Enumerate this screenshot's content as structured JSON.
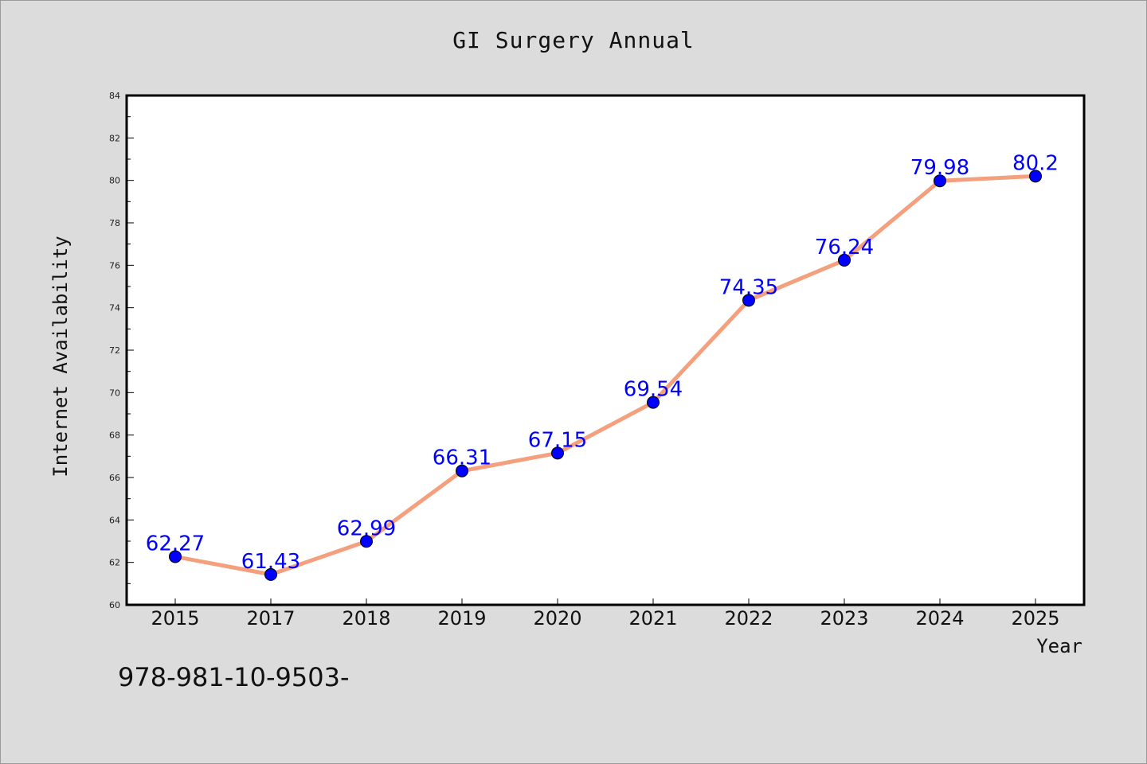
{
  "chart_data": {
    "type": "line",
    "title": "GI Surgery Annual",
    "xlabel": "Year",
    "ylabel": "Internet Availability",
    "categories": [
      "2015",
      "2017",
      "2018",
      "2019",
      "2020",
      "2021",
      "2022",
      "2023",
      "2024",
      "2025"
    ],
    "values": [
      62.27,
      61.43,
      62.99,
      66.31,
      67.15,
      69.54,
      74.35,
      76.24,
      79.98,
      80.2
    ],
    "data_labels": [
      "62.27",
      "61.43",
      "62.99",
      "66.31",
      "67.15",
      "69.54",
      "74.35",
      "76.24",
      "79.98",
      "80.2"
    ],
    "ylim": [
      60,
      84
    ],
    "yticks": [
      "60",
      "62",
      "64",
      "66",
      "68",
      "70",
      "72",
      "74",
      "76",
      "78",
      "80",
      "82",
      "84"
    ],
    "grid": false,
    "line_color": "#f4a07e",
    "marker_color": "#0000ff",
    "label_color": "#0000ff",
    "plot_background": "#ffffff",
    "page_background": "#dcdcdc"
  },
  "footer": {
    "code": "978-981-10-9503-"
  }
}
